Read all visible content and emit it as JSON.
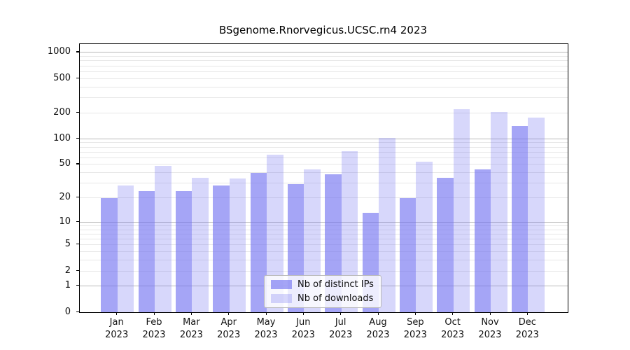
{
  "chart_data": {
    "type": "bar",
    "title": "BSgenome.Rnorvegicus.UCSC.rn4 2023",
    "categories": [
      "Jan",
      "Feb",
      "Mar",
      "Apr",
      "May",
      "Jun",
      "Jul",
      "Aug",
      "Sep",
      "Oct",
      "Nov",
      "Dec"
    ],
    "year": "2023",
    "series": [
      {
        "name": "Nb of distinct IPs",
        "color": "rgba(113,113,240,0.63)",
        "values": [
          20,
          24,
          24,
          28,
          40,
          29,
          38,
          13,
          20,
          35,
          44,
          140
        ]
      },
      {
        "name": "Nb of downloads",
        "color": "rgba(113,113,240,0.28)",
        "values": [
          28,
          48,
          35,
          34,
          65,
          44,
          72,
          102,
          54,
          220,
          205,
          177
        ]
      }
    ],
    "xlabel": "",
    "ylabel": "",
    "y_scale": "log10(1+x)",
    "ylim": [
      0,
      1250
    ],
    "y_ticks": [
      0,
      1,
      2,
      5,
      10,
      20,
      50,
      100,
      200,
      500,
      1000
    ],
    "grid_major_values": [
      1,
      10,
      100,
      1000
    ],
    "grid": true,
    "legend_position": "lower center",
    "colors": {
      "grid_major": "#b9b9b9",
      "grid_minor": "#e7e7e7",
      "axis": "#000000",
      "text": "#111111"
    }
  }
}
